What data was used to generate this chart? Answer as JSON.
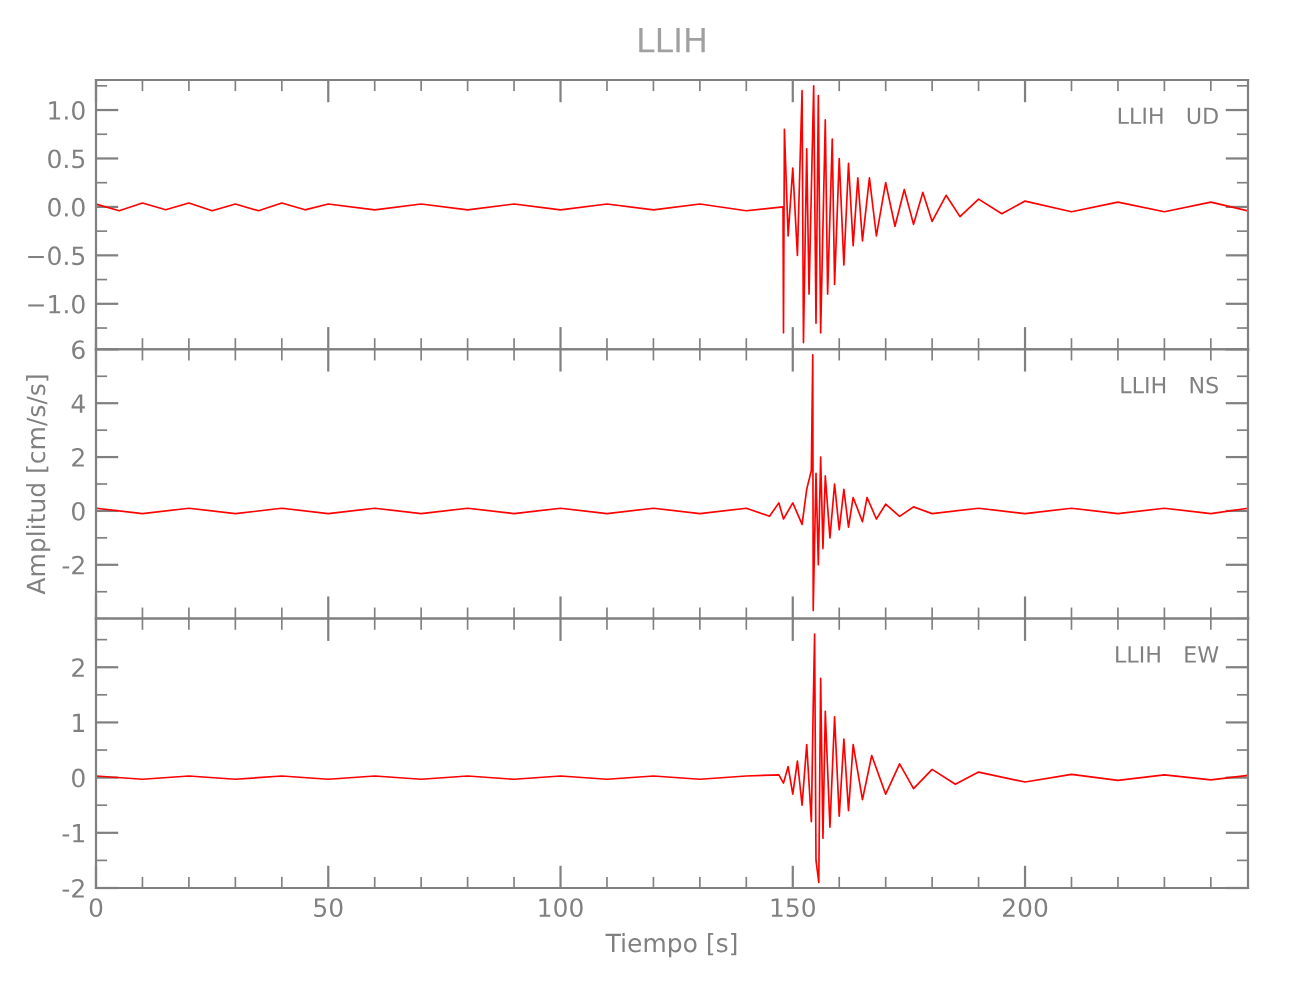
{
  "chart_data": [
    {
      "type": "line",
      "title": "LLIH",
      "annotations": [
        "LLIH   UD"
      ],
      "xlim": [
        0,
        248
      ],
      "xticks": [
        0,
        50,
        100,
        150,
        200
      ],
      "ylim": [
        -1.47,
        1.31
      ],
      "yticks": [
        {
          "value": -1.0,
          "label": "−1.0"
        },
        {
          "value": -0.5,
          "label": "−0.5"
        },
        {
          "value": 0.0,
          "label": "0.0"
        },
        {
          "value": 0.5,
          "label": "0.5"
        },
        {
          "value": 1.0,
          "label": "1.0"
        }
      ],
      "tick_labels": "y",
      "grid": false,
      "legend": false,
      "series": [
        {
          "color": "#ff0000",
          "x": [
            0,
            5,
            10,
            15,
            20,
            25,
            30,
            35,
            40,
            45,
            50,
            60,
            70,
            80,
            90,
            100,
            110,
            120,
            130,
            140,
            147.9,
            148.0,
            148.2,
            149,
            150,
            151,
            152.0,
            152.3,
            153,
            153.5,
            154.5,
            155,
            155.5,
            156,
            157,
            157.5,
            158.5,
            159,
            160,
            161,
            162,
            163,
            164,
            165,
            166.5,
            168,
            170,
            172,
            174,
            176,
            178,
            180,
            183,
            186,
            190,
            195,
            200,
            210,
            220,
            230,
            240,
            248
          ],
          "values": [
            0.03,
            -0.04,
            0.04,
            -0.03,
            0.04,
            -0.04,
            0.03,
            -0.04,
            0.04,
            -0.03,
            0.03,
            -0.03,
            0.03,
            -0.03,
            0.03,
            -0.03,
            0.03,
            -0.03,
            0.03,
            -0.04,
            0.0,
            -1.3,
            0.8,
            -0.3,
            0.4,
            -0.5,
            1.2,
            -1.4,
            0.6,
            -0.9,
            1.25,
            -1.2,
            1.15,
            -1.3,
            0.9,
            -0.9,
            0.7,
            -0.8,
            0.5,
            -0.6,
            0.45,
            -0.4,
            0.3,
            -0.35,
            0.3,
            -0.3,
            0.25,
            -0.2,
            0.18,
            -0.18,
            0.15,
            -0.15,
            0.12,
            -0.1,
            0.08,
            -0.07,
            0.06,
            -0.05,
            0.05,
            -0.05,
            0.05,
            -0.04
          ]
        }
      ]
    },
    {
      "type": "line",
      "ylabel": "Amplitud [cm/s/s]",
      "annotations": [
        "LLIH   NS"
      ],
      "xlim": [
        0,
        248
      ],
      "xticks": [
        0,
        50,
        100,
        150,
        200
      ],
      "ylim": [
        -4,
        6
      ],
      "yticks": [
        -2,
        0,
        2,
        4,
        6
      ],
      "tick_labels": "y",
      "grid": false,
      "legend": false,
      "series": [
        {
          "color": "#ff0000",
          "x": [
            0,
            10,
            20,
            30,
            40,
            50,
            60,
            70,
            80,
            90,
            100,
            110,
            120,
            130,
            140,
            145,
            147,
            148,
            150,
            152,
            153,
            154.0,
            154.3,
            154.4,
            155,
            155.5,
            156,
            156.5,
            157,
            158,
            159,
            160,
            161,
            162,
            163,
            165,
            166,
            168,
            170,
            173,
            176,
            180,
            190,
            200,
            210,
            220,
            230,
            240,
            248
          ],
          "values": [
            0.1,
            -0.1,
            0.1,
            -0.1,
            0.1,
            -0.1,
            0.1,
            -0.1,
            0.1,
            -0.1,
            0.1,
            -0.1,
            0.1,
            -0.1,
            0.1,
            -0.2,
            0.3,
            -0.3,
            0.3,
            -0.5,
            0.8,
            1.5,
            5.8,
            -3.7,
            1.4,
            -2.0,
            2.0,
            -1.4,
            1.3,
            -1.0,
            1.0,
            -0.7,
            0.8,
            -0.6,
            0.5,
            -0.4,
            0.5,
            -0.3,
            0.25,
            -0.2,
            0.15,
            -0.1,
            0.1,
            -0.1,
            0.1,
            -0.1,
            0.1,
            -0.1,
            0.1
          ]
        }
      ]
    },
    {
      "type": "line",
      "xlabel": "Tiempo [s]",
      "annotations": [
        "LLIH   EW"
      ],
      "xlim": [
        0,
        248
      ],
      "xticks": [
        0,
        50,
        100,
        150,
        200
      ],
      "ylim": [
        -2,
        2.88
      ],
      "yticks": [
        -2,
        -1,
        0,
        1,
        2
      ],
      "grid": false,
      "legend": false,
      "series": [
        {
          "color": "#ff0000",
          "x": [
            0,
            10,
            20,
            30,
            40,
            50,
            60,
            70,
            80,
            90,
            100,
            110,
            120,
            130,
            140,
            147,
            148,
            149,
            150,
            151,
            152,
            153,
            154.0,
            154.4,
            154.7,
            155.0,
            155.6,
            156,
            156.5,
            157,
            158,
            159,
            160,
            161,
            162,
            163,
            165,
            167,
            170,
            173,
            176,
            180,
            185,
            190,
            200,
            210,
            220,
            230,
            240,
            248
          ],
          "values": [
            0.03,
            -0.03,
            0.03,
            -0.03,
            0.03,
            -0.03,
            0.03,
            -0.03,
            0.03,
            -0.03,
            0.03,
            -0.03,
            0.03,
            -0.03,
            0.03,
            0.05,
            -0.1,
            0.2,
            -0.3,
            0.3,
            -0.5,
            0.6,
            -0.8,
            1.3,
            2.6,
            -1.5,
            -1.9,
            1.8,
            -1.1,
            1.2,
            -0.9,
            1.1,
            -0.7,
            0.7,
            -0.6,
            0.6,
            -0.4,
            0.4,
            -0.3,
            0.25,
            -0.2,
            0.15,
            -0.12,
            0.1,
            -0.08,
            0.06,
            -0.05,
            0.05,
            -0.04,
            0.04
          ]
        }
      ]
    }
  ]
}
